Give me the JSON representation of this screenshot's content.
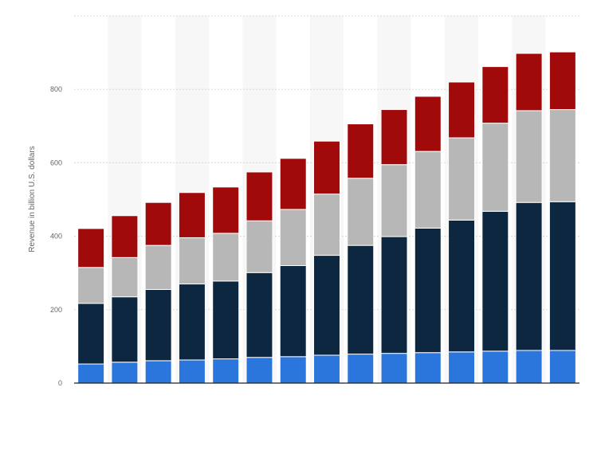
{
  "chart_data": {
    "type": "bar",
    "stacked": true,
    "title": "",
    "xlabel": "",
    "ylabel": "Revenue in billion U.S. dollars",
    "ylim": [
      0,
      1000
    ],
    "yticks": [
      0,
      200,
      400,
      600,
      800
    ],
    "grid": true,
    "categories": [
      "",
      "",
      "",
      "",
      "",
      "",
      "",
      "",
      "",
      "",
      "",
      "",
      "",
      "",
      ""
    ],
    "series": [
      {
        "color": "#2a76dd",
        "values": [
          52,
          57,
          61,
          63,
          66,
          70,
          72,
          76,
          79,
          81,
          83,
          85,
          87,
          89,
          89
        ]
      },
      {
        "color": "#0e2740",
        "values": [
          165,
          178,
          194,
          207,
          212,
          231,
          248,
          272,
          296,
          318,
          339,
          359,
          381,
          403,
          405
        ]
      },
      {
        "color": "#b7b7b7",
        "values": [
          98,
          107,
          120,
          126,
          130,
          141,
          153,
          167,
          183,
          196,
          209,
          224,
          240,
          250,
          251
        ]
      },
      {
        "color": "#a10a0a",
        "values": [
          106,
          114,
          117,
          123,
          126,
          133,
          139,
          144,
          148,
          150,
          150,
          152,
          154,
          156,
          157
        ]
      }
    ]
  }
}
